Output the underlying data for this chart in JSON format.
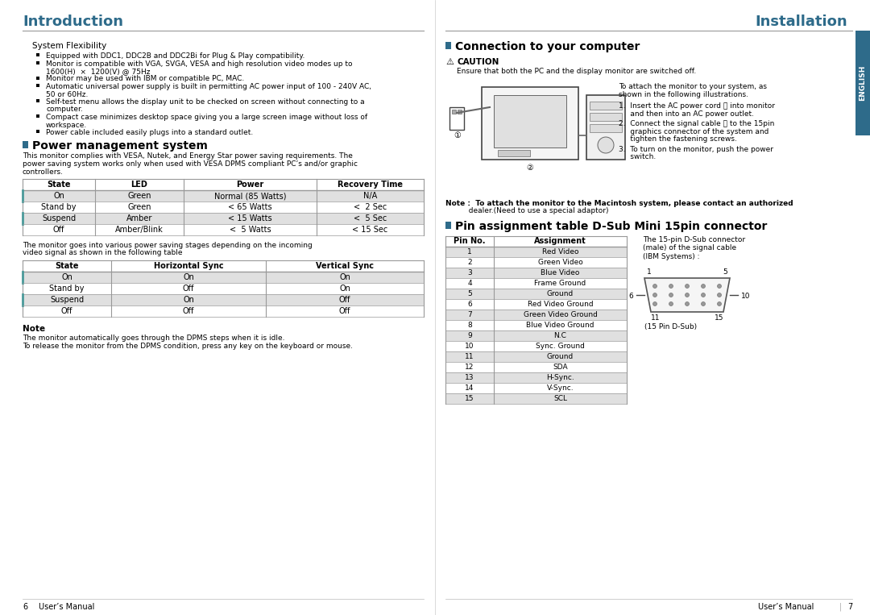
{
  "bg_color": "#ffffff",
  "title_color": "#2e6b8a",
  "section_icon_color": "#2e6b8a",
  "english_tab_color": "#2e6b8a",
  "table_shade_color": "#e0e0e0",
  "teal_accent": "#4a9a9a",
  "line_color": "#999999",
  "left_title": "Introduction",
  "right_title": "Installation",
  "system_flexibility_header": "System Flexibility",
  "system_flexibility_bullets": [
    "Equipped with DDC1, DDC2B and DDC2Bi for Plug & Play compatibility.",
    "Monitor is compatible with VGA, SVGA, VESA and high resolution video modes up to\n1600(H)  ×  1200(V) @ 75Hz",
    "Monitor may be used with IBM or compatible PC, MAC.",
    "Automatic universal power supply is built in permitting AC power input of 100 - 240V AC,\n50 or 60Hz.",
    "Self-test menu allows the display unit to be checked on screen without connecting to a\ncomputer.",
    "Compact case minimizes desktop space giving you a large screen image without loss of\nworkspace.",
    "Power cable included easily plugs into a standard outlet."
  ],
  "power_mgmt_header": "Power management system",
  "power_mgmt_text": "This monitor complies with VESA, Nutek, and Energy Star power saving requirements. The\npower saving system works only when used with VESA DPMS compliant PC’s and/or graphic\ncontrollers.",
  "power_table1_headers": [
    "State",
    "LED",
    "Power",
    "Recovery Time"
  ],
  "power_table1_rows": [
    [
      "On",
      "Green",
      "Normal (85 Watts)",
      "N/A"
    ],
    [
      "Stand by",
      "Green",
      "< 65 Watts",
      "<  2 Sec"
    ],
    [
      "Suspend",
      "Amber",
      "< 15 Watts",
      "<  5 Sec"
    ],
    [
      "Off",
      "Amber/Blink",
      "<  5 Watts",
      "< 15 Sec"
    ]
  ],
  "power_table1_shaded": [
    0,
    2
  ],
  "power_table2_text": "The monitor goes into various power saving stages depending on the incoming\nvideo signal as shown in the following table",
  "power_table2_headers": [
    "State",
    "Horizontal Sync",
    "Vertical Sync"
  ],
  "power_table2_rows": [
    [
      "On",
      "On",
      "On"
    ],
    [
      "Stand by",
      "Off",
      "On"
    ],
    [
      "Suspend",
      "On",
      "Off"
    ],
    [
      "Off",
      "Off",
      "Off"
    ]
  ],
  "power_table2_shaded": [
    0,
    2
  ],
  "note_header": "Note",
  "note_lines": [
    "The monitor automatically goes through the DPMS steps when it is idle.",
    "To release the monitor from the DPMS condition, press any key on the keyboard or mouse."
  ],
  "left_page": "6",
  "left_page_label": "User’s Manual",
  "connection_header": "Connection to your computer",
  "caution_label": "CAUTION",
  "caution_text": "Ensure that both the PC and the display monitor are switched off.",
  "connection_intro": "To attach the monitor to your system, as\nshown in the following illustrations.",
  "connection_steps": [
    "1.  Insert the AC power cord Ⓐ into monitor\n     and then into an AC power outlet.",
    "2.  Connect the signal cable Ⓑ to the 15pin\n     graphics connector of the system and\n     tighten the fastening screws.",
    "3.  To turn on the monitor, push the power\n     switch."
  ],
  "connection_note": "Note :  To attach the monitor to the Macintosh system, please contact an authorized\n          dealer.(Need to use a special adaptor)",
  "pin_header": "Pin assignment table D-Sub Mini 15pin connector",
  "pin_table_headers": [
    "Pin No.",
    "Assignment"
  ],
  "pin_table_rows": [
    [
      "1",
      "Red Video"
    ],
    [
      "2",
      "Green Video"
    ],
    [
      "3",
      "Blue Video"
    ],
    [
      "4",
      "Frame Ground"
    ],
    [
      "5",
      "Ground"
    ],
    [
      "6",
      "Red Video Ground"
    ],
    [
      "7",
      "Green Video Ground"
    ],
    [
      "8",
      "Blue Video Ground"
    ],
    [
      "9",
      "N.C"
    ],
    [
      "10",
      "Sync. Ground"
    ],
    [
      "11",
      "Ground"
    ],
    [
      "12",
      "SDA"
    ],
    [
      "13",
      "H-Sync."
    ],
    [
      "14",
      "V-Sync."
    ],
    [
      "15",
      "SCL"
    ]
  ],
  "pin_table_shaded": [
    0,
    2,
    4,
    6,
    8,
    10,
    12,
    14
  ],
  "pin_connector_desc": "The 15-pin D-Sub connector\n(male) of the signal cable\n(IBM Systems) :",
  "pin_connector_label": "(15 Pin D-Sub)",
  "right_page": "7",
  "right_page_label": "User’s Manual"
}
